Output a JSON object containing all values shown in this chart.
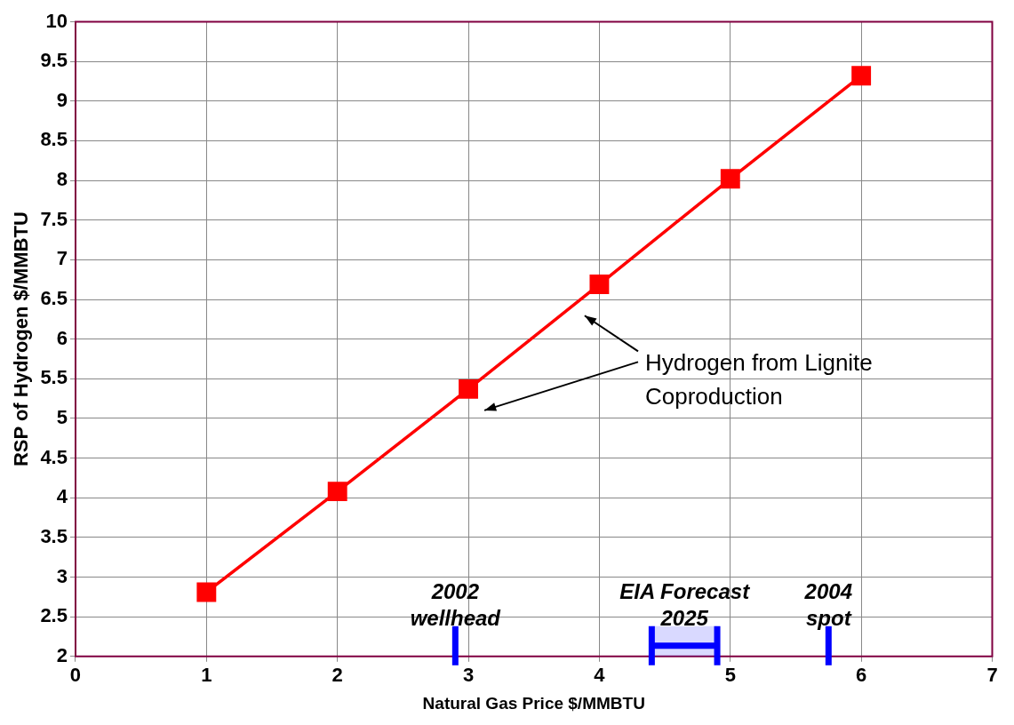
{
  "chart_data": {
    "type": "line",
    "xlabel": "Natural Gas Price $/MMBTU",
    "ylabel": "RSP of Hydrogen $/MMBTU",
    "x": [
      1,
      2,
      3,
      4,
      5,
      6
    ],
    "series": [
      {
        "color": "#ff0000",
        "values": [
          2.81,
          4.08,
          5.37,
          6.69,
          8.02,
          9.32
        ]
      }
    ],
    "xlim": [
      0,
      7
    ],
    "xticks": [
      0,
      1,
      2,
      3,
      4,
      5,
      6,
      7
    ],
    "ylim": [
      2,
      10
    ],
    "yticks": [
      2,
      2.5,
      3,
      3.5,
      4,
      4.5,
      5,
      5.5,
      6,
      6.5,
      7,
      7.5,
      8,
      8.5,
      9,
      9.5,
      10
    ],
    "grid": true,
    "marker": "square",
    "line_style": "solid",
    "legend": false,
    "ref_lines": [
      {
        "axis": "x",
        "value": 2.9,
        "label": "2002\nwellhead",
        "color": "#0000ff"
      },
      {
        "axis": "x",
        "value": 5.75,
        "label": "2004\nspot",
        "color": "#0000ff"
      }
    ],
    "bands": [
      {
        "axis": "x",
        "from": 4.4,
        "to": 4.9,
        "label": "EIA Forecast\n2025",
        "color": "#0000ff"
      }
    ],
    "annotations": [
      "Hydrogen from Lignite\nCoproduction"
    ]
  }
}
